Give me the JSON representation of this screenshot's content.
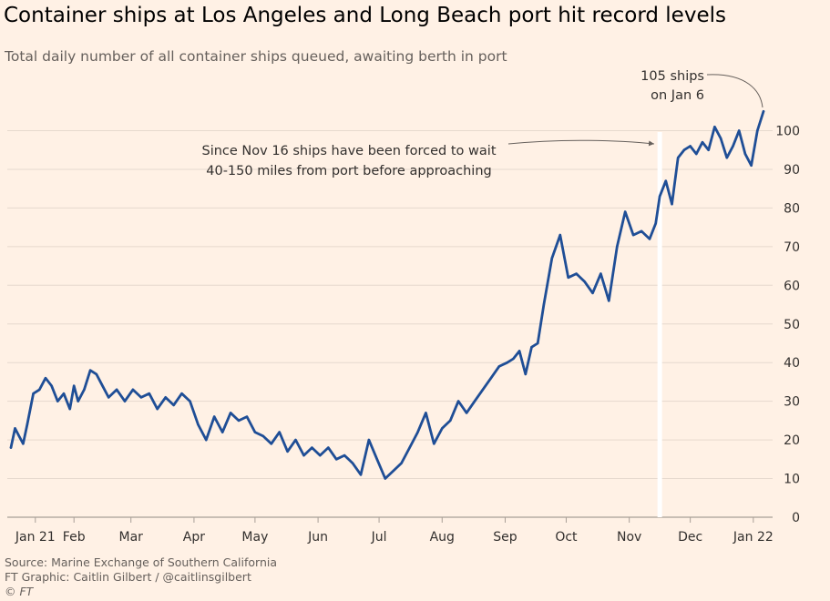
{
  "title": "Container ships at Los Angeles and Long Beach port hit record levels",
  "subtitle": "Total daily number of all container ships queued, awaiting berth in port",
  "source": "Source: Marine Exchange of Southern California",
  "credit": "FT Graphic: Caitlin Gilbert / @caitlinsgilbert",
  "logo": "© FT",
  "colors": {
    "background": "#fff1e5",
    "line": "#1f4e96",
    "grid": "#e6d9ce",
    "highlight_band": "#ffffff"
  },
  "chart_data": {
    "type": "line",
    "title": "Container ships at Los Angeles and Long Beach port hit record levels",
    "subtitle": "Total daily number of all container ships queued, awaiting berth in port",
    "xlabel": "",
    "ylabel": "",
    "x_ticks": [
      "Jan 21",
      "Feb",
      "Mar",
      "Apr",
      "May",
      "Jun",
      "Jul",
      "Aug",
      "Sep",
      "Oct",
      "Nov",
      "Dec",
      "Jan 22"
    ],
    "y_ticks": [
      0,
      10,
      20,
      30,
      40,
      50,
      60,
      70,
      80,
      90,
      100
    ],
    "ylim": [
      0,
      105
    ],
    "grid": "horizontal",
    "y_axis_side": "right",
    "highlight_date": "2021-11-16",
    "series": [
      {
        "x": [
          "2021-01-01",
          "2021-01-03",
          "2021-01-05",
          "2021-01-07",
          "2021-01-09",
          "2021-01-12",
          "2021-01-15",
          "2021-01-18",
          "2021-01-21",
          "2021-01-24",
          "2021-01-27",
          "2021-01-30",
          "2021-02-01",
          "2021-02-03",
          "2021-02-06",
          "2021-02-09",
          "2021-02-12",
          "2021-02-15",
          "2021-02-18",
          "2021-02-22",
          "2021-02-26",
          "2021-03-02",
          "2021-03-06",
          "2021-03-10",
          "2021-03-14",
          "2021-03-18",
          "2021-03-22",
          "2021-03-26",
          "2021-03-30",
          "2021-04-03",
          "2021-04-07",
          "2021-04-11",
          "2021-04-15",
          "2021-04-19",
          "2021-04-23",
          "2021-04-27",
          "2021-05-01",
          "2021-05-05",
          "2021-05-09",
          "2021-05-13",
          "2021-05-17",
          "2021-05-21",
          "2021-05-25",
          "2021-05-29",
          "2021-06-02",
          "2021-06-06",
          "2021-06-10",
          "2021-06-14",
          "2021-06-18",
          "2021-06-22",
          "2021-06-26",
          "2021-06-30",
          "2021-07-04",
          "2021-07-08",
          "2021-07-12",
          "2021-07-16",
          "2021-07-20",
          "2021-07-24",
          "2021-07-28",
          "2021-08-01",
          "2021-08-05",
          "2021-08-09",
          "2021-08-13",
          "2021-08-17",
          "2021-08-21",
          "2021-08-25",
          "2021-08-29",
          "2021-09-02",
          "2021-09-05",
          "2021-09-08",
          "2021-09-11",
          "2021-09-14",
          "2021-09-17",
          "2021-09-20",
          "2021-09-24",
          "2021-09-28",
          "2021-10-02",
          "2021-10-06",
          "2021-10-10",
          "2021-10-14",
          "2021-10-18",
          "2021-10-22",
          "2021-10-26",
          "2021-10-30",
          "2021-11-03",
          "2021-11-07",
          "2021-11-11",
          "2021-11-14",
          "2021-11-16",
          "2021-11-19",
          "2021-11-22",
          "2021-11-25",
          "2021-11-28",
          "2021-12-01",
          "2021-12-04",
          "2021-12-07",
          "2021-12-10",
          "2021-12-13",
          "2021-12-16",
          "2021-12-19",
          "2021-12-22",
          "2021-12-25",
          "2021-12-28",
          "2021-12-31",
          "2022-01-03",
          "2022-01-06"
        ],
        "values": [
          18,
          23,
          21,
          19,
          24,
          32,
          33,
          36,
          34,
          30,
          32,
          28,
          34,
          30,
          33,
          38,
          37,
          34,
          31,
          33,
          30,
          33,
          31,
          32,
          28,
          31,
          29,
          32,
          30,
          24,
          20,
          26,
          22,
          27,
          25,
          26,
          22,
          21,
          19,
          22,
          17,
          20,
          16,
          18,
          16,
          18,
          15,
          16,
          14,
          11,
          20,
          15,
          10,
          12,
          14,
          18,
          22,
          27,
          19,
          23,
          25,
          30,
          27,
          30,
          33,
          36,
          39,
          40,
          41,
          43,
          37,
          44,
          45,
          55,
          67,
          73,
          62,
          63,
          61,
          58,
          63,
          56,
          70,
          79,
          73,
          74,
          72,
          76,
          83,
          87,
          81,
          93,
          95,
          96,
          94,
          97,
          95,
          101,
          98,
          93,
          96,
          100,
          94,
          91,
          100,
          105
        ]
      }
    ],
    "annotations": [
      {
        "date": "2022-01-06",
        "value": 105,
        "lines": [
          "105 ships",
          "on Jan 6"
        ]
      },
      {
        "date": "2021-11-16",
        "lines": [
          "Since Nov 16 ships have been forced to wait",
          "40-150 miles from port before approaching"
        ]
      }
    ]
  }
}
